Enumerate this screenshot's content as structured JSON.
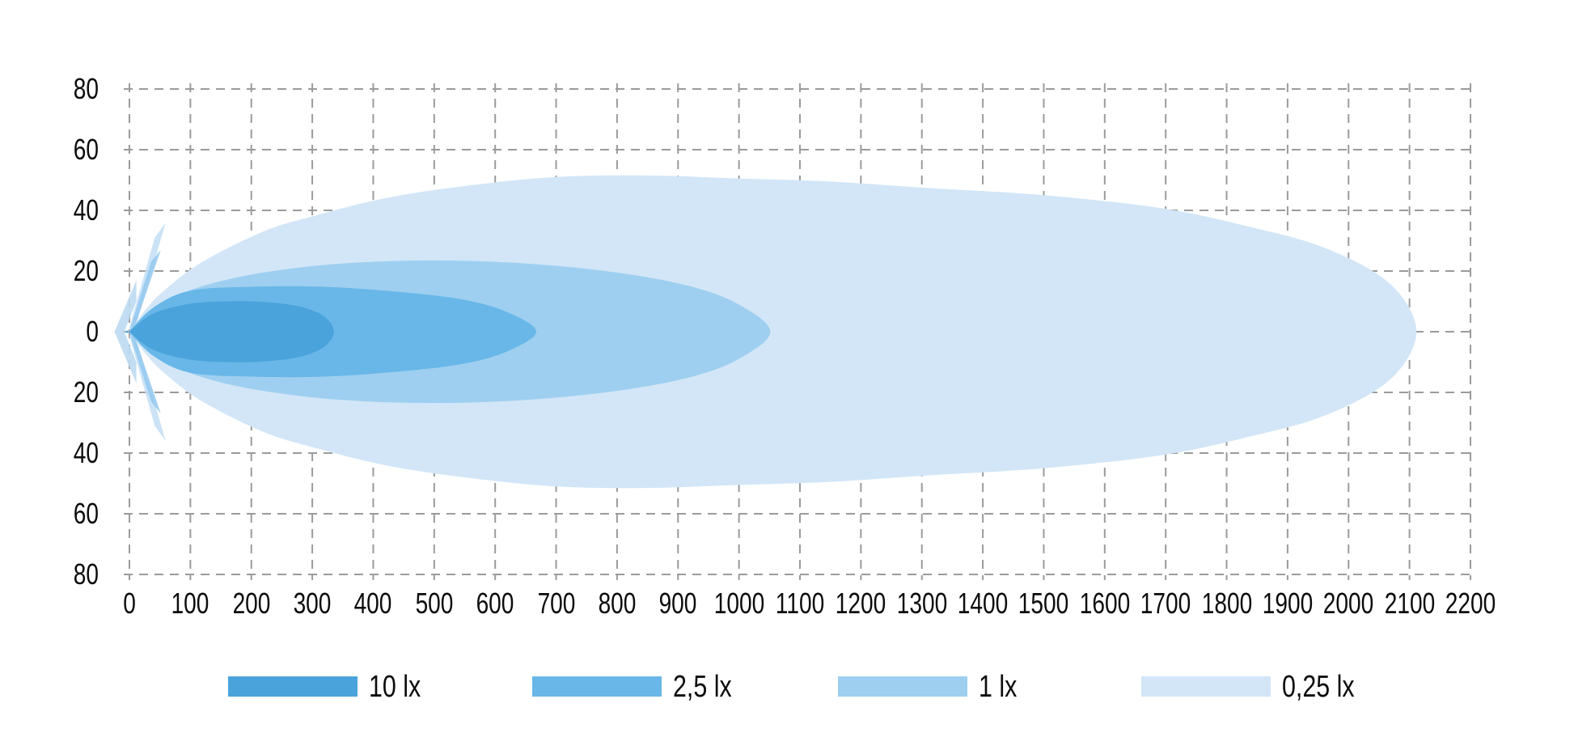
{
  "chart_data": {
    "type": "area",
    "title": "",
    "xlabel": "",
    "ylabel": "",
    "x_ticks": [
      0,
      100,
      200,
      300,
      400,
      500,
      600,
      700,
      800,
      900,
      1000,
      1100,
      1200,
      1300,
      1400,
      1500,
      1600,
      1700,
      1800,
      1900,
      2000,
      2100,
      2200
    ],
    "y_tick_labels": [
      "80",
      "60",
      "40",
      "20",
      "0",
      "20",
      "40",
      "60",
      "80"
    ],
    "x_range": [
      0,
      2200
    ],
    "y_range": [
      -80,
      80
    ],
    "grid": "dashed",
    "grid_color": "#9b9b9b",
    "legend_position": "bottom",
    "series": [
      {
        "name": "0,25 lx",
        "color": "#d2e6f7",
        "reach": 2112,
        "max_half_width": 51.5,
        "profile": [
          [
            0,
            0
          ],
          [
            30,
            8
          ],
          [
            60,
            14
          ],
          [
            120,
            23
          ],
          [
            220,
            33
          ],
          [
            300,
            38
          ],
          [
            420,
            44
          ],
          [
            550,
            48
          ],
          [
            700,
            51
          ],
          [
            850,
            51.5
          ],
          [
            1000,
            50.5
          ],
          [
            1150,
            49.5
          ],
          [
            1300,
            47.5
          ],
          [
            1500,
            45
          ],
          [
            1700,
            40.5
          ],
          [
            1850,
            34
          ],
          [
            1950,
            28.5
          ],
          [
            2040,
            20
          ],
          [
            2090,
            11
          ],
          [
            2112,
            0
          ]
        ]
      },
      {
        "name": "1 lx",
        "color": "#9ecff0",
        "reach": 1052,
        "max_half_width": 23.5,
        "profile": [
          [
            0,
            0
          ],
          [
            50,
            9
          ],
          [
            120,
            15
          ],
          [
            220,
            19.5
          ],
          [
            350,
            22.5
          ],
          [
            500,
            23.5
          ],
          [
            650,
            22.5
          ],
          [
            800,
            19.5
          ],
          [
            920,
            15
          ],
          [
            1000,
            9
          ],
          [
            1052,
            0
          ]
        ]
      },
      {
        "name": "2,5 lx",
        "color": "#68b7e8",
        "reach": 668,
        "max_half_width": 15,
        "profile": [
          [
            0,
            0
          ],
          [
            40,
            8
          ],
          [
            100,
            13.5
          ],
          [
            200,
            14.8
          ],
          [
            320,
            14.8
          ],
          [
            450,
            13
          ],
          [
            550,
            10.5
          ],
          [
            620,
            6.5
          ],
          [
            668,
            0
          ]
        ]
      },
      {
        "name": "10 lx",
        "color": "#4aa3db",
        "reach": 336,
        "max_half_width": 10,
        "profile": [
          [
            0,
            0
          ],
          [
            40,
            6
          ],
          [
            100,
            9.2
          ],
          [
            160,
            10
          ],
          [
            220,
            9.8
          ],
          [
            280,
            8.3
          ],
          [
            320,
            5
          ],
          [
            336,
            0
          ]
        ]
      }
    ],
    "flare": {
      "outer_color": "#c6e0f5",
      "inner_color": "#93c8ee",
      "arrow_color": "#bcdaf2",
      "outer_spikes": [
        [
          [
            0,
            1
          ],
          [
            42,
            31
          ],
          [
            60,
            36
          ],
          [
            14,
            4
          ]
        ],
        [
          [
            0,
            -1
          ],
          [
            42,
            -31
          ],
          [
            60,
            -36
          ],
          [
            14,
            -4
          ]
        ]
      ],
      "inner_spikes": [
        [
          [
            0,
            0
          ],
          [
            36,
            23
          ],
          [
            52,
            27
          ],
          [
            10,
            2
          ]
        ],
        [
          [
            0,
            0
          ],
          [
            36,
            -23
          ],
          [
            52,
            -27
          ],
          [
            10,
            -2
          ]
        ]
      ],
      "arrow": [
        [
          -24,
          0
        ],
        [
          12,
          17
        ],
        [
          12,
          10
        ],
        [
          -8,
          0
        ],
        [
          12,
          -10
        ],
        [
          12,
          -17
        ]
      ]
    }
  },
  "legend": {
    "items": [
      {
        "label": "10 lx",
        "color": "#4aa3db"
      },
      {
        "label": "2,5 lx",
        "color": "#68b7e8"
      },
      {
        "label": "1 lx",
        "color": "#9ecff0"
      },
      {
        "label": "0,25 lx",
        "color": "#d2e6f7"
      }
    ]
  }
}
